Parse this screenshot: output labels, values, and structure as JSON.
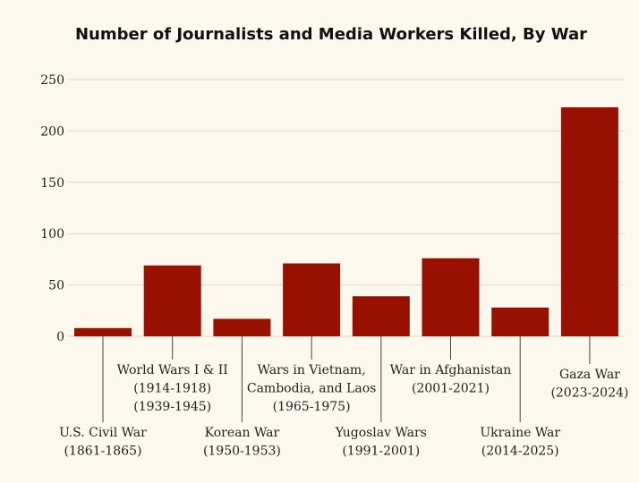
{
  "chart_data": {
    "type": "bar",
    "title": "Number of Journalists and Media Workers Killed, By War",
    "xlabel": "",
    "ylabel": "",
    "ylim": [
      0,
      250
    ],
    "yticks": [
      0,
      50,
      100,
      150,
      200,
      250
    ],
    "grid": true,
    "colors": {
      "bar": "#981000",
      "background": "#fcf8ee"
    },
    "categories": [
      {
        "lines": [
          "U.S. Civil War",
          "(1861-1865)"
        ]
      },
      {
        "lines": [
          "World Wars I & II",
          "(1914-1918)",
          "(1939-1945)"
        ]
      },
      {
        "lines": [
          "Korean War",
          "(1950-1953)"
        ]
      },
      {
        "lines": [
          "Wars in Vietnam,",
          "Cambodia, and Laos",
          "(1965-1975)"
        ]
      },
      {
        "lines": [
          "Yugoslav Wars",
          "(1991-2001)"
        ]
      },
      {
        "lines": [
          "War in Afghanistan",
          "(2001-2021)"
        ]
      },
      {
        "lines": [
          "Ukraine War",
          "(2014-2025)"
        ]
      },
      {
        "lines": [
          "Gaza War",
          "(2023-2024)"
        ]
      }
    ],
    "values": [
      8,
      69,
      17,
      71,
      39,
      76,
      28,
      223
    ]
  }
}
